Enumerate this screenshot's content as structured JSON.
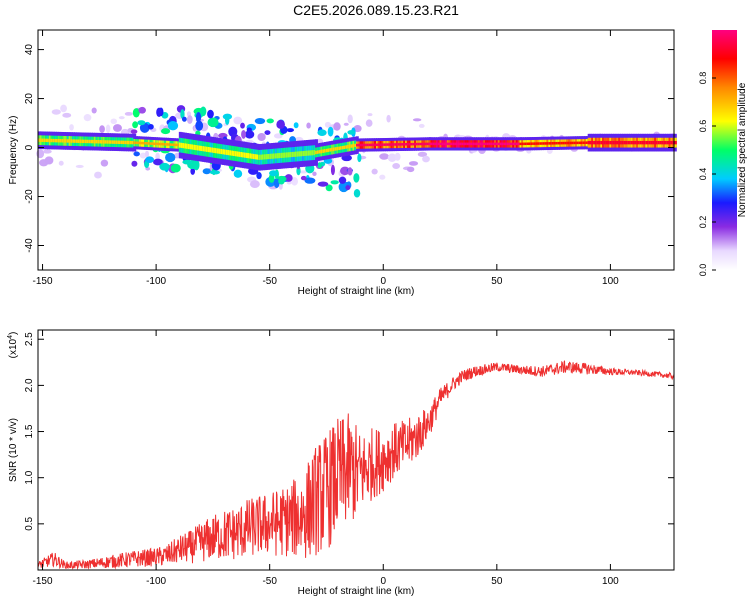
{
  "title": "C2E5.2026.089.15.23.R21",
  "chart_data": [
    {
      "type": "heatmap",
      "xlabel": "Height of straight line (km)",
      "ylabel": "Frequency (Hz)",
      "xlim": [
        -152,
        128
      ],
      "ylim": [
        -50,
        48
      ],
      "xticks": [
        -150,
        -100,
        -50,
        0,
        50,
        100
      ],
      "yticks": [
        -40,
        -20,
        0,
        20,
        40
      ],
      "colorbar": {
        "label": "Normalized spectral amplitude",
        "range": [
          0.0,
          1.0
        ],
        "ticks": [
          0.0,
          0.2,
          0.4,
          0.6,
          0.8
        ]
      },
      "band_segments": [
        {
          "x0": -152,
          "x1": -110,
          "f_start": 3,
          "f_end": 2,
          "width_hz": 4,
          "amp": 0.55
        },
        {
          "x0": -110,
          "x1": -90,
          "f_start": 2,
          "f_end": 1,
          "width_hz": 3,
          "amp": 0.6
        },
        {
          "x0": -90,
          "x1": -55,
          "f_start": 1,
          "f_end": -4,
          "width_hz": 6,
          "amp": 0.5
        },
        {
          "x0": -55,
          "x1": -30,
          "f_start": -4,
          "f_end": -2,
          "width_hz": 6,
          "amp": 0.45
        },
        {
          "x0": -30,
          "x1": -12,
          "f_start": -2,
          "f_end": 1,
          "width_hz": 4,
          "amp": 0.55
        },
        {
          "x0": -12,
          "x1": 20,
          "f_start": 1,
          "f_end": 1.5,
          "width_hz": 3,
          "amp": 0.85
        },
        {
          "x0": 20,
          "x1": 60,
          "f_start": 1.5,
          "f_end": 1.5,
          "width_hz": 3,
          "amp": 0.95
        },
        {
          "x0": 60,
          "x1": 90,
          "f_start": 1.5,
          "f_end": 2,
          "width_hz": 3,
          "amp": 0.75
        },
        {
          "x0": 90,
          "x1": 128,
          "f_start": 2,
          "f_end": 2,
          "width_hz": 4,
          "amp": 0.8
        }
      ]
    },
    {
      "type": "line",
      "xlabel": "Height of straight line (km)",
      "ylabel": "SNR (10 * v/v)",
      "multiplier_label": "(x10",
      "multiplier_exp": "4",
      "multiplier_close": ")",
      "xlim": [
        -152,
        128
      ],
      "ylim": [
        0.0,
        2.6
      ],
      "xticks": [
        -150,
        -100,
        -50,
        0,
        50,
        100
      ],
      "yticks": [
        0.5,
        1.0,
        1.5,
        2.0,
        2.5
      ],
      "ytick_labels": [
        "0.5",
        "1.0",
        "1.5",
        "2.0",
        "2.5"
      ],
      "series": [
        {
          "name": "SNR",
          "color": "#ee3030",
          "x": [
            -152,
            -145,
            -140,
            -130,
            -120,
            -110,
            -100,
            -95,
            -90,
            -85,
            -80,
            -75,
            -70,
            -65,
            -60,
            -55,
            -50,
            -45,
            -40,
            -35,
            -30,
            -25,
            -20,
            -15,
            -12,
            -10,
            -5,
            0,
            5,
            10,
            15,
            20,
            25,
            30,
            35,
            40,
            50,
            60,
            70,
            80,
            90,
            100,
            110,
            120,
            128
          ],
          "values": [
            0.05,
            0.12,
            0.05,
            0.06,
            0.09,
            0.12,
            0.14,
            0.16,
            0.22,
            0.25,
            0.3,
            0.35,
            0.38,
            0.4,
            0.45,
            0.48,
            0.5,
            0.52,
            0.55,
            0.6,
            0.75,
            0.85,
            1.0,
            1.1,
            1.05,
            1.05,
            1.15,
            1.2,
            1.3,
            1.35,
            1.45,
            1.6,
            1.85,
            2.0,
            2.1,
            2.15,
            2.2,
            2.17,
            2.15,
            2.2,
            2.18,
            2.15,
            2.14,
            2.12,
            2.1
          ],
          "noise": [
            0.04,
            0.08,
            0.04,
            0.05,
            0.07,
            0.09,
            0.1,
            0.12,
            0.15,
            0.18,
            0.22,
            0.25,
            0.28,
            0.3,
            0.32,
            0.33,
            0.35,
            0.38,
            0.42,
            0.5,
            0.6,
            0.65,
            0.65,
            0.6,
            0.55,
            0.45,
            0.4,
            0.35,
            0.3,
            0.28,
            0.25,
            0.18,
            0.12,
            0.08,
            0.07,
            0.06,
            0.05,
            0.05,
            0.06,
            0.07,
            0.06,
            0.04,
            0.03,
            0.03,
            0.03
          ]
        }
      ]
    }
  ]
}
